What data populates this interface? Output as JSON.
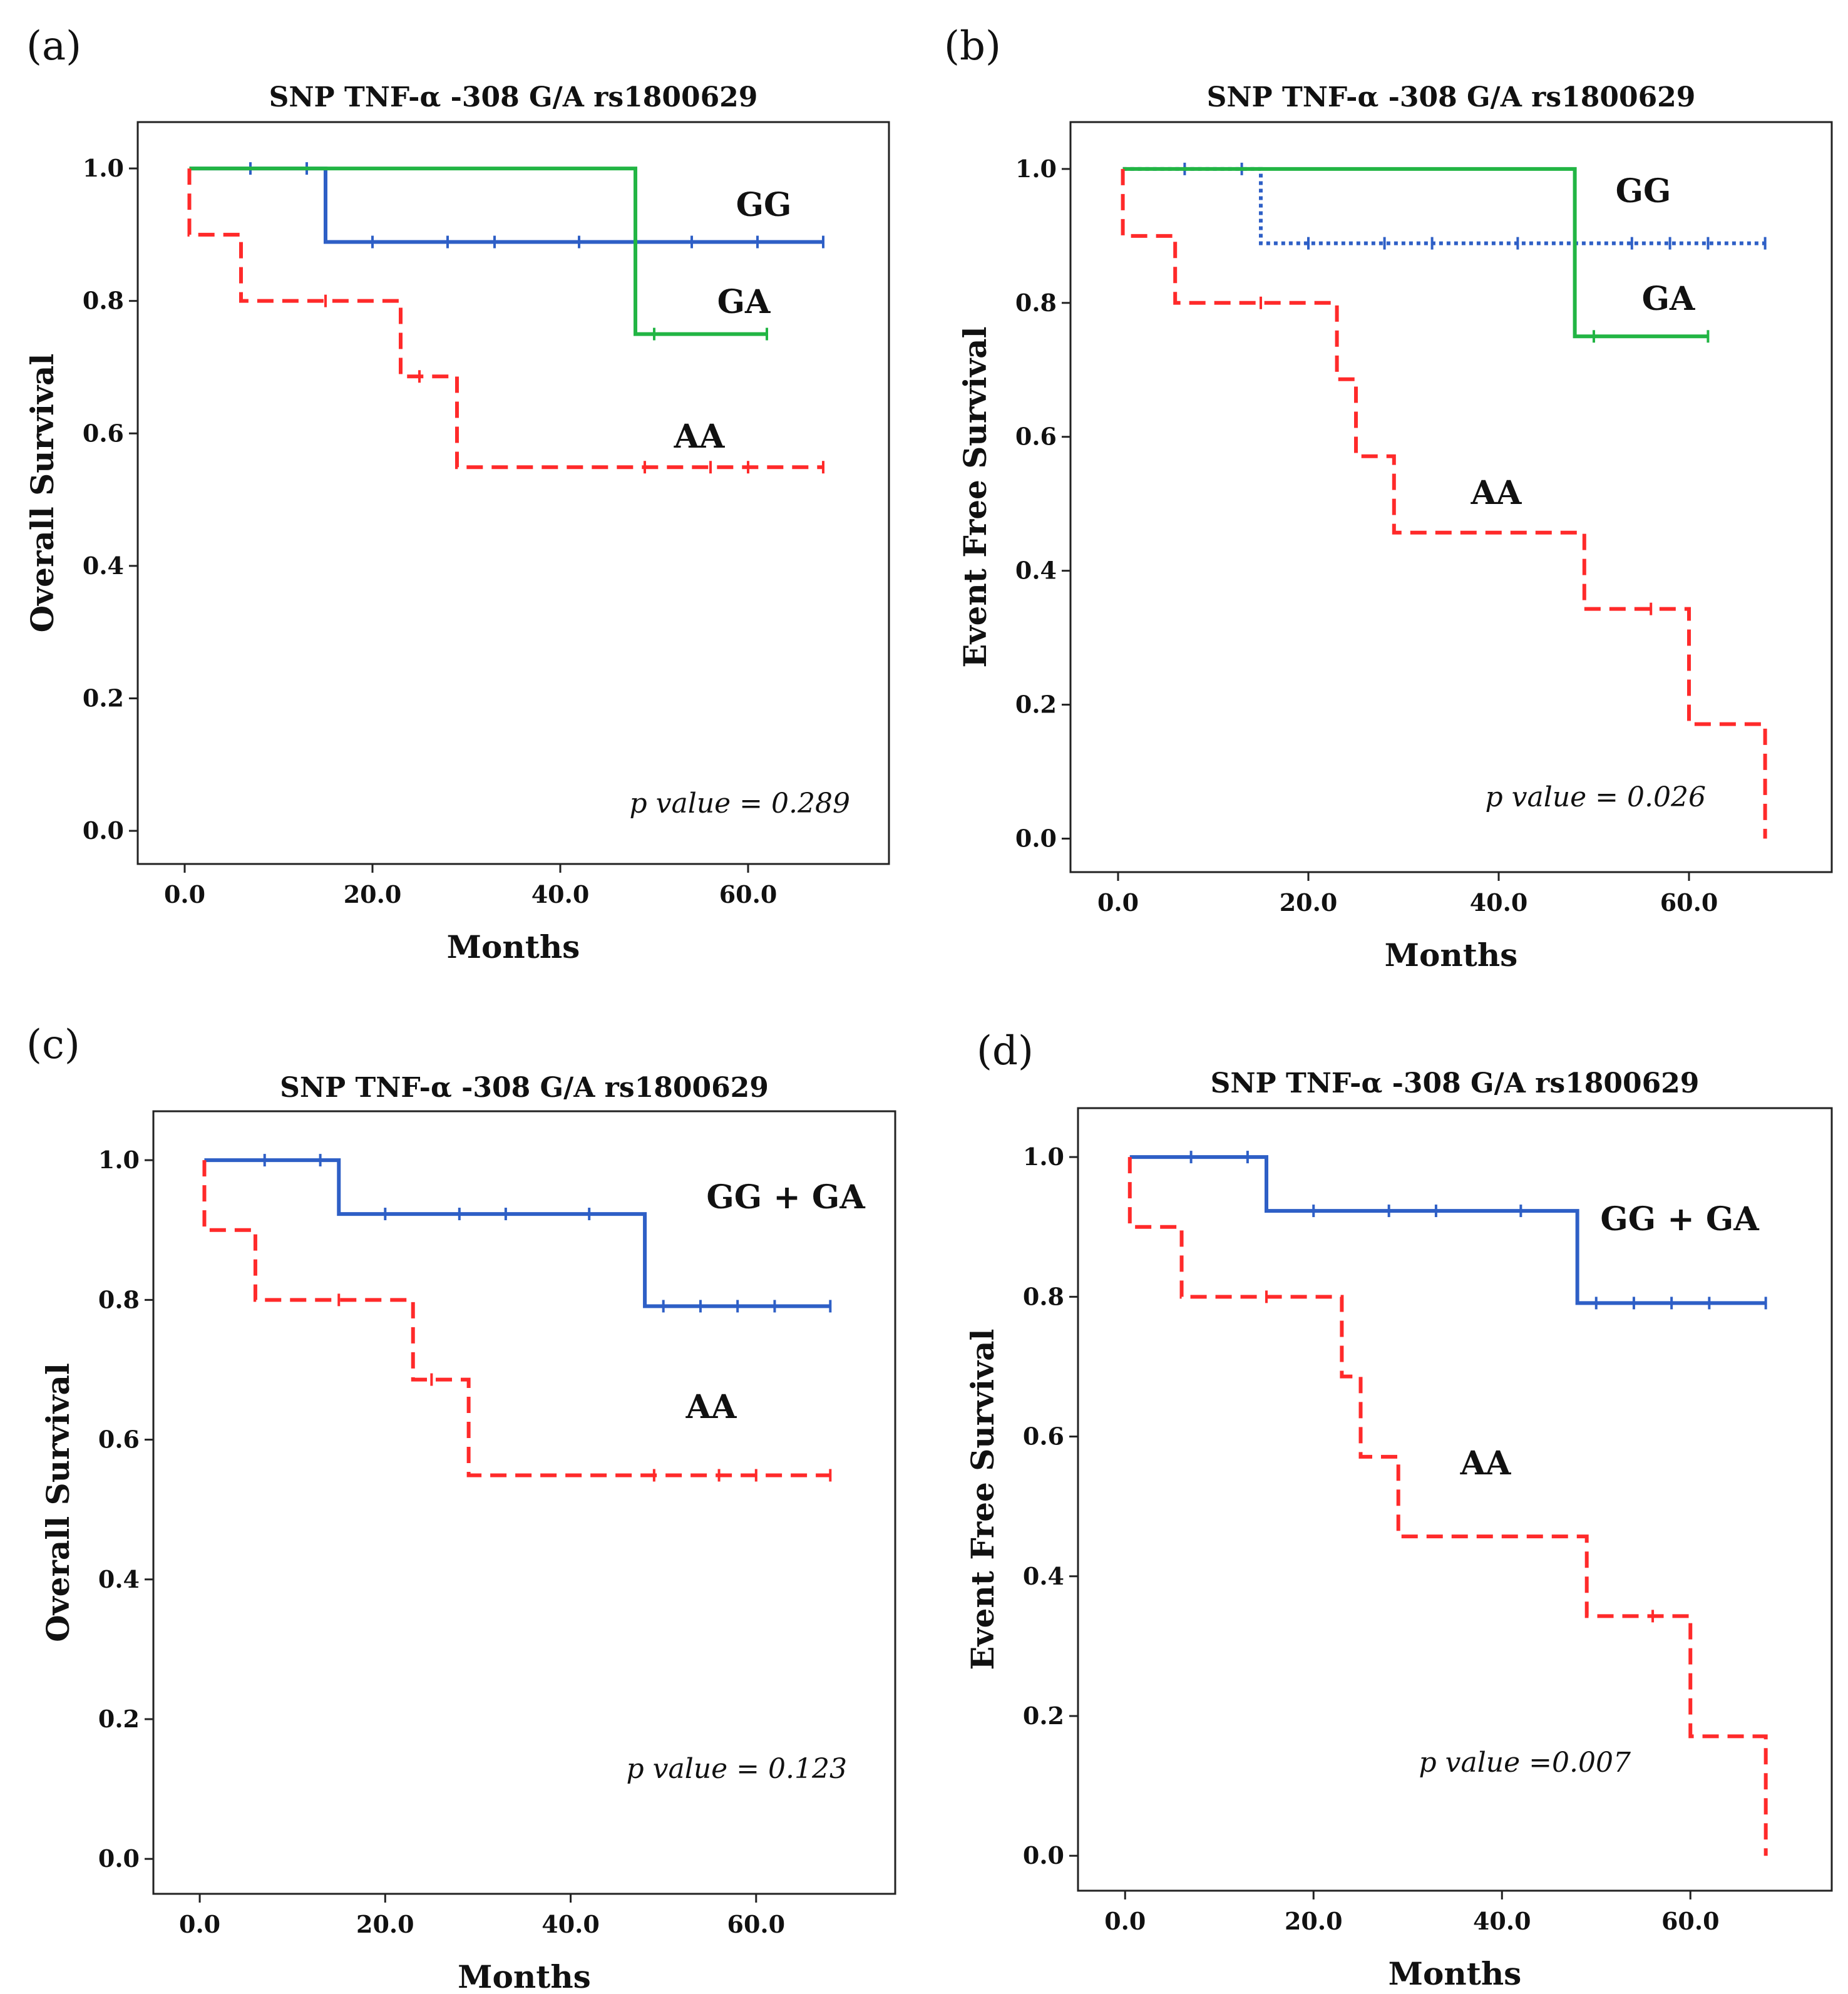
{
  "chart_data": [
    {
      "type": "line",
      "subtype": "kaplan-meier",
      "panel": "(a)",
      "title": "SNP TNF-α -308 G/A rs1800629",
      "xlabel": "Months",
      "ylabel": "Overall Survival",
      "xlim": [
        -5,
        75
      ],
      "ylim": [
        -0.05,
        1.07
      ],
      "xticks": [
        "0.0",
        "20.0",
        "40.0",
        "60.0"
      ],
      "yticks": [
        "0.0",
        "0.2",
        "0.4",
        "0.6",
        "0.8",
        "1.0"
      ],
      "annotation": "p value = 0.289",
      "series": [
        {
          "name": "GG",
          "color": "#2e5fc6",
          "dash": "solid",
          "steps": [
            [
              0.5,
              1.0
            ],
            [
              15,
              0.889
            ],
            [
              68,
              0.889
            ]
          ],
          "censored": [
            [
              7,
              1.0
            ],
            [
              13,
              1.0
            ],
            [
              20,
              0.889
            ],
            [
              28,
              0.889
            ],
            [
              33,
              0.889
            ],
            [
              42,
              0.889
            ],
            [
              48,
              0.889
            ],
            [
              54,
              0.889
            ],
            [
              61,
              0.889
            ],
            [
              68,
              0.889
            ]
          ]
        },
        {
          "name": "GA",
          "color": "#22b544",
          "dash": "solid",
          "steps": [
            [
              0.5,
              1.0
            ],
            [
              48,
              0.75
            ],
            [
              62,
              0.75
            ]
          ],
          "censored": [
            [
              50,
              0.75
            ],
            [
              62,
              0.75
            ]
          ]
        },
        {
          "name": "AA",
          "color": "#ff2a2a",
          "dash": "dashed",
          "steps": [
            [
              0.5,
              1.0
            ],
            [
              0.5,
              0.9
            ],
            [
              6,
              0.8
            ],
            [
              23,
              0.686
            ],
            [
              29,
              0.549
            ],
            [
              68,
              0.549
            ]
          ],
          "censored": [
            [
              15,
              0.8
            ],
            [
              25,
              0.686
            ],
            [
              49,
              0.549
            ],
            [
              56,
              0.549
            ],
            [
              60,
              0.549
            ],
            [
              68,
              0.549
            ]
          ]
        }
      ]
    },
    {
      "type": "line",
      "subtype": "kaplan-meier",
      "panel": "(b)",
      "title": "SNP TNF-α -308 G/A rs1800629",
      "xlabel": "Months",
      "ylabel": "Event Free Survival",
      "xlim": [
        -5,
        75
      ],
      "ylim": [
        -0.05,
        1.07
      ],
      "xticks": [
        "0.0",
        "20.0",
        "40.0",
        "60.0"
      ],
      "yticks": [
        "0.0",
        "0.2",
        "0.4",
        "0.6",
        "0.8",
        "1.0"
      ],
      "annotation": "p value = 0.026",
      "series": [
        {
          "name": "GG",
          "color": "#2e5fc6",
          "dash": "dotted",
          "steps": [
            [
              0.5,
              1.0
            ],
            [
              15,
              0.889
            ],
            [
              68,
              0.889
            ]
          ],
          "censored": [
            [
              7,
              1.0
            ],
            [
              13,
              1.0
            ],
            [
              20,
              0.889
            ],
            [
              28,
              0.889
            ],
            [
              33,
              0.889
            ],
            [
              42,
              0.889
            ],
            [
              54,
              0.889
            ],
            [
              58,
              0.889
            ],
            [
              62,
              0.889
            ],
            [
              68,
              0.889
            ]
          ]
        },
        {
          "name": "GA",
          "color": "#22b544",
          "dash": "solid",
          "steps": [
            [
              0.5,
              1.0
            ],
            [
              48,
              0.75
            ],
            [
              62,
              0.75
            ]
          ],
          "censored": [
            [
              50,
              0.75
            ],
            [
              62,
              0.75
            ]
          ]
        },
        {
          "name": "AA",
          "color": "#ff2a2a",
          "dash": "dashed",
          "steps": [
            [
              0.5,
              1.0
            ],
            [
              0.5,
              0.9
            ],
            [
              6,
              0.8
            ],
            [
              23,
              0.686
            ],
            [
              25,
              0.571
            ],
            [
              29,
              0.457
            ],
            [
              49,
              0.343
            ],
            [
              60,
              0.171
            ],
            [
              68,
              0.0
            ]
          ],
          "censored": [
            [
              15,
              0.8
            ],
            [
              56,
              0.343
            ]
          ]
        }
      ]
    },
    {
      "type": "line",
      "subtype": "kaplan-meier",
      "panel": "(c)",
      "title": "SNP TNF-α -308 G/A rs1800629",
      "xlabel": "Months",
      "ylabel": "Overall Survival",
      "xlim": [
        -5,
        75
      ],
      "ylim": [
        -0.05,
        1.07
      ],
      "xticks": [
        "0.0",
        "20.0",
        "40.0",
        "60.0"
      ],
      "yticks": [
        "0.0",
        "0.2",
        "0.4",
        "0.6",
        "0.8",
        "1.0"
      ],
      "annotation": "p  value = 0.123",
      "series": [
        {
          "name": "GG + GA",
          "color": "#2e5fc6",
          "dash": "solid",
          "steps": [
            [
              0.5,
              1.0
            ],
            [
              15,
              0.923
            ],
            [
              48,
              0.791
            ],
            [
              68,
              0.791
            ]
          ],
          "censored": [
            [
              7,
              1.0
            ],
            [
              13,
              1.0
            ],
            [
              20,
              0.923
            ],
            [
              28,
              0.923
            ],
            [
              33,
              0.923
            ],
            [
              42,
              0.923
            ],
            [
              50,
              0.791
            ],
            [
              54,
              0.791
            ],
            [
              58,
              0.791
            ],
            [
              62,
              0.791
            ],
            [
              68,
              0.791
            ]
          ]
        },
        {
          "name": "AA",
          "color": "#ff2a2a",
          "dash": "dashed",
          "steps": [
            [
              0.5,
              1.0
            ],
            [
              0.5,
              0.9
            ],
            [
              6,
              0.8
            ],
            [
              23,
              0.686
            ],
            [
              29,
              0.549
            ],
            [
              68,
              0.549
            ]
          ],
          "censored": [
            [
              15,
              0.8
            ],
            [
              25,
              0.686
            ],
            [
              49,
              0.549
            ],
            [
              56,
              0.549
            ],
            [
              60,
              0.549
            ],
            [
              68,
              0.549
            ]
          ]
        }
      ]
    },
    {
      "type": "line",
      "subtype": "kaplan-meier",
      "panel": "(d)",
      "title": "SNP TNF-α -308 G/A rs1800629",
      "xlabel": "Months",
      "ylabel": "Event Free Survival",
      "xlim": [
        -5,
        75
      ],
      "ylim": [
        -0.05,
        1.07
      ],
      "xticks": [
        "0.0",
        "20.0",
        "40.0",
        "60.0"
      ],
      "yticks": [
        "0.0",
        "0.2",
        "0.4",
        "0.6",
        "0.8",
        "1.0"
      ],
      "annotation": "p value =0.007",
      "series": [
        {
          "name": "GG + GA",
          "color": "#2e5fc6",
          "dash": "solid",
          "steps": [
            [
              0.5,
              1.0
            ],
            [
              15,
              0.923
            ],
            [
              48,
              0.791
            ],
            [
              68,
              0.791
            ]
          ],
          "censored": [
            [
              7,
              1.0
            ],
            [
              13,
              1.0
            ],
            [
              20,
              0.923
            ],
            [
              28,
              0.923
            ],
            [
              33,
              0.923
            ],
            [
              42,
              0.923
            ],
            [
              50,
              0.791
            ],
            [
              54,
              0.791
            ],
            [
              58,
              0.791
            ],
            [
              62,
              0.791
            ],
            [
              68,
              0.791
            ]
          ]
        },
        {
          "name": "AA",
          "color": "#ff2a2a",
          "dash": "dashed",
          "steps": [
            [
              0.5,
              1.0
            ],
            [
              0.5,
              0.9
            ],
            [
              6,
              0.8
            ],
            [
              23,
              0.686
            ],
            [
              25,
              0.571
            ],
            [
              29,
              0.457
            ],
            [
              49,
              0.343
            ],
            [
              60,
              0.171
            ],
            [
              68,
              0.0
            ]
          ],
          "censored": [
            [
              15,
              0.8
            ],
            [
              56,
              0.343
            ]
          ]
        }
      ]
    }
  ]
}
